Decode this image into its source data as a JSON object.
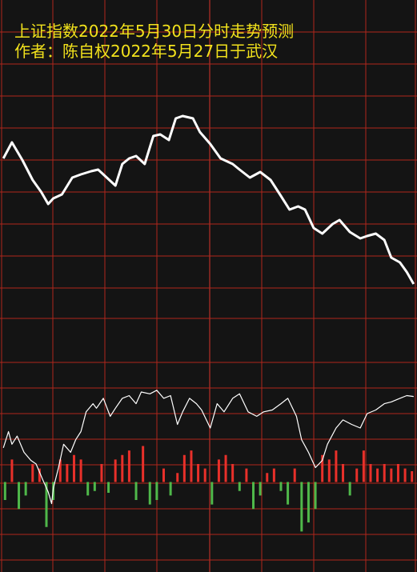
{
  "chart_data": [
    {
      "type": "line",
      "title": "上证指数2022年5月30日分时走势预测",
      "subtitle": "作者：陈自权2022年5月27日于武汉",
      "xlim": [
        0,
        240
      ],
      "ylim": [
        0,
        100
      ],
      "color": "#ffffff",
      "x": [
        1,
        6,
        12,
        18,
        23,
        27,
        30,
        35,
        41,
        46,
        52,
        56,
        61,
        66,
        70,
        74,
        78,
        83,
        88,
        92,
        97,
        101,
        105,
        111,
        115,
        121,
        127,
        134,
        138,
        144,
        150,
        156,
        162,
        167,
        172,
        176,
        181,
        186,
        192,
        196,
        202,
        208,
        212,
        217,
        222,
        226,
        231,
        235,
        239
      ],
      "values": [
        50.5,
        55.5,
        50,
        43.75,
        40,
        36.25,
        38,
        39.25,
        44.5,
        45.5,
        46.5,
        47,
        44.5,
        42,
        48.75,
        50.5,
        51.25,
        48.75,
        57.5,
        58,
        56.25,
        63,
        63.75,
        63,
        58.75,
        55,
        50.5,
        48.75,
        47,
        44.5,
        46.25,
        43.75,
        38.75,
        34.5,
        35.5,
        34.5,
        28.75,
        27,
        30,
        31.25,
        27.5,
        25.5,
        26.25,
        27,
        25,
        19.5,
        18,
        15,
        11.25
      ]
    },
    {
      "type": "bar",
      "xlim": [
        0,
        240
      ],
      "ylim": [
        -100,
        180
      ],
      "up_color": "#e8302a",
      "down_color": "#4fb84a",
      "x": [
        2,
        6,
        10,
        14,
        18,
        22,
        26,
        30,
        34,
        38,
        42,
        46,
        50,
        54,
        58,
        62,
        66,
        70,
        74,
        78,
        82,
        86,
        90,
        94,
        98,
        102,
        106,
        110,
        114,
        118,
        122,
        126,
        130,
        134,
        138,
        142,
        146,
        150,
        154,
        158,
        162,
        166,
        170,
        174,
        178,
        182,
        186,
        190,
        194,
        198,
        202,
        206,
        210,
        214,
        218,
        222,
        226,
        230,
        234,
        238
      ],
      "values": [
        -20,
        25,
        -30,
        -15,
        20,
        15,
        -50,
        -20,
        25,
        20,
        30,
        25,
        -15,
        -10,
        20,
        -12,
        25,
        30,
        35,
        -20,
        40,
        -25,
        -20,
        15,
        -15,
        10,
        30,
        35,
        20,
        15,
        -25,
        25,
        30,
        20,
        -10,
        15,
        -30,
        -15,
        10,
        15,
        -10,
        -25,
        15,
        -55,
        -45,
        -30,
        30,
        25,
        35,
        20,
        -15,
        15,
        35,
        20,
        15,
        20,
        15,
        20,
        15,
        12
      ],
      "line": {
        "color": "#ffffff",
        "x": [
          1,
          4,
          6,
          9,
          13,
          17,
          20,
          24,
          27,
          29,
          30,
          33,
          36,
          40,
          43,
          46,
          49,
          53,
          55,
          59,
          63,
          66,
          70,
          74,
          78,
          81,
          86,
          90,
          94,
          98,
          102,
          105,
          109,
          113,
          116,
          121,
          125,
          129,
          134,
          138,
          143,
          148,
          152,
          157,
          162,
          166,
          171,
          174,
          178,
          182,
          186,
          189,
          194,
          198,
          203,
          208,
          212,
          217,
          222,
          226,
          231,
          235,
          239
        ],
        "values": [
          38,
          56,
          42,
          51,
          33,
          24,
          20,
          2,
          -11,
          -24,
          -7,
          16,
          42,
          33,
          47,
          56,
          78,
          87,
          82,
          93,
          73,
          82,
          93,
          96,
          87,
          100,
          98,
          102,
          93,
          96,
          64,
          78,
          93,
          87,
          80,
          60,
          87,
          78,
          93,
          98,
          78,
          73,
          78,
          80,
          87,
          93,
          73,
          47,
          33,
          16,
          24,
          42,
          60,
          69,
          64,
          60,
          76,
          80,
          87,
          89,
          93,
          96,
          95
        ]
      }
    }
  ]
}
